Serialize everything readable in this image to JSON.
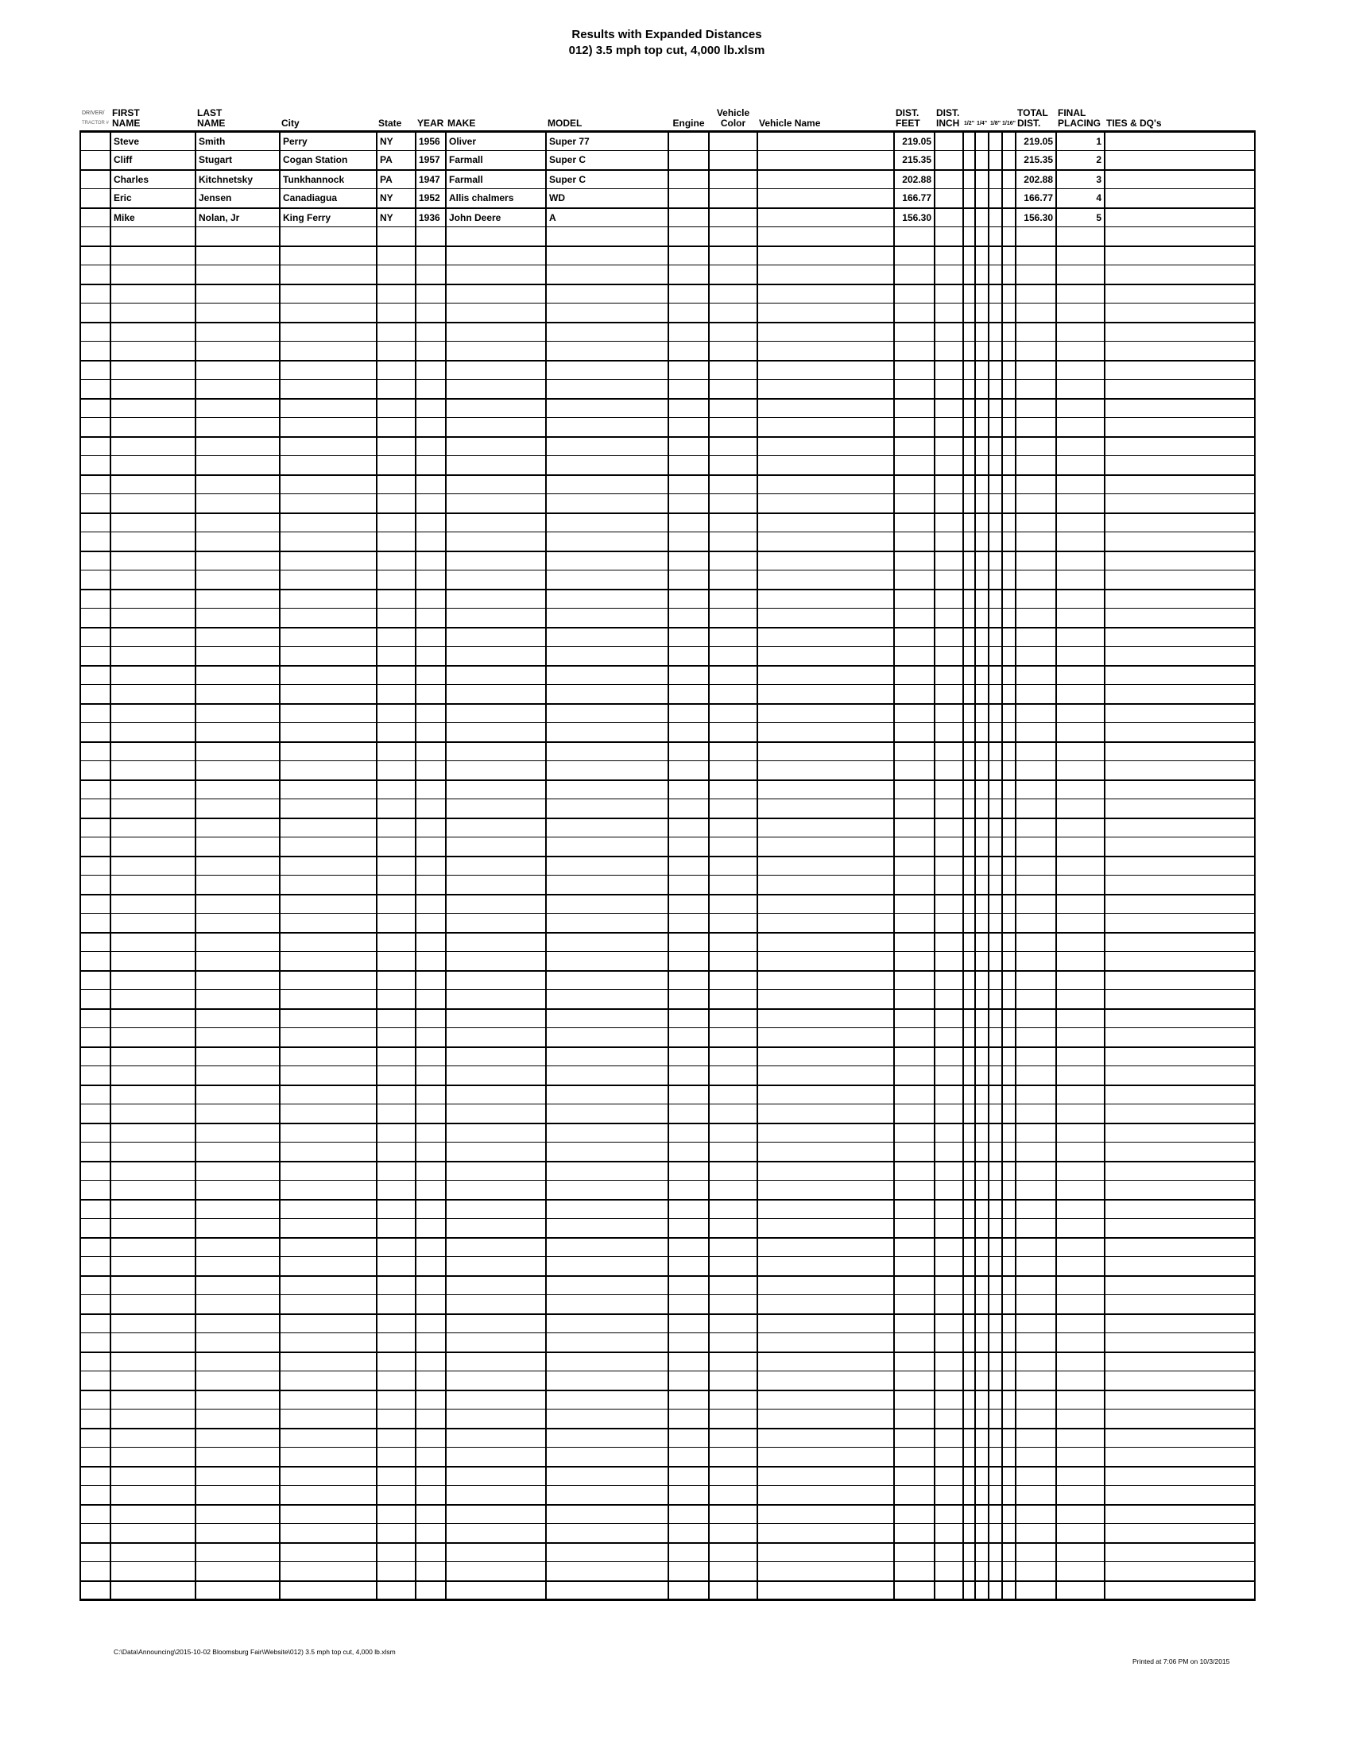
{
  "title": {
    "line1": "Results with Expanded Distances",
    "line2": "012) 3.5 mph top cut, 4,000 lb.xlsm"
  },
  "table": {
    "columns": [
      {
        "key": "driver",
        "lines": [
          "DRIVER/",
          "TRACTOR #"
        ]
      },
      {
        "key": "first",
        "lines": [
          "FIRST",
          "NAME"
        ]
      },
      {
        "key": "last",
        "lines": [
          "LAST",
          "NAME"
        ]
      },
      {
        "key": "city",
        "lines": [
          "City"
        ]
      },
      {
        "key": "state",
        "lines": [
          "State"
        ]
      },
      {
        "key": "year",
        "lines": [
          "YEAR"
        ]
      },
      {
        "key": "make",
        "lines": [
          "MAKE"
        ]
      },
      {
        "key": "model",
        "lines": [
          "MODEL"
        ]
      },
      {
        "key": "engine",
        "lines": [
          "Engine"
        ]
      },
      {
        "key": "color",
        "lines": [
          "Vehicle",
          "Color"
        ]
      },
      {
        "key": "vname",
        "lines": [
          "Vehicle Name"
        ]
      },
      {
        "key": "feet",
        "lines": [
          "DIST.",
          "FEET"
        ]
      },
      {
        "key": "inch",
        "lines": [
          "DIST.",
          "INCH"
        ]
      },
      {
        "key": "f2",
        "lines": [
          "1/2\""
        ]
      },
      {
        "key": "f4",
        "lines": [
          "1/4\""
        ]
      },
      {
        "key": "f8",
        "lines": [
          "1/8\""
        ]
      },
      {
        "key": "f16",
        "lines": [
          "1/16\""
        ]
      },
      {
        "key": "total",
        "lines": [
          "TOTAL",
          "DIST."
        ]
      },
      {
        "key": "placing",
        "lines": [
          "FINAL",
          "PLACING"
        ]
      },
      {
        "key": "ties",
        "lines": [
          "TIES & DQ's"
        ]
      }
    ],
    "rows": [
      {
        "driver": "",
        "first": "Steve",
        "last": "Smith",
        "city": "Perry",
        "state": "NY",
        "year": "1956",
        "make": "Oliver",
        "model": "Super 77",
        "engine": "",
        "color": "",
        "vname": "",
        "feet": "219.05",
        "inch": "",
        "f2": "",
        "f4": "",
        "f8": "",
        "f16": "",
        "total": "219.05",
        "placing": "1",
        "ties": ""
      },
      {
        "driver": "",
        "first": "Cliff",
        "last": "Stugart",
        "city": "Cogan Station",
        "state": "PA",
        "year": "1957",
        "make": "Farmall",
        "model": "Super C",
        "engine": "",
        "color": "",
        "vname": "",
        "feet": "215.35",
        "inch": "",
        "f2": "",
        "f4": "",
        "f8": "",
        "f16": "",
        "total": "215.35",
        "placing": "2",
        "ties": ""
      },
      {
        "driver": "",
        "first": "Charles",
        "last": "Kitchnetsky",
        "city": "Tunkhannock",
        "state": "PA",
        "year": "1947",
        "make": "Farmall",
        "model": "Super C",
        "engine": "",
        "color": "",
        "vname": "",
        "feet": "202.88",
        "inch": "",
        "f2": "",
        "f4": "",
        "f8": "",
        "f16": "",
        "total": "202.88",
        "placing": "3",
        "ties": ""
      },
      {
        "driver": "",
        "first": "Eric",
        "last": "Jensen",
        "city": "Canadiagua",
        "state": "NY",
        "year": "1952",
        "make": "Allis chalmers",
        "model": "WD",
        "engine": "",
        "color": "",
        "vname": "",
        "feet": "166.77",
        "inch": "",
        "f2": "",
        "f4": "",
        "f8": "",
        "f16": "",
        "total": "166.77",
        "placing": "4",
        "ties": ""
      },
      {
        "driver": "",
        "first": "Mike",
        "last": "Nolan, Jr",
        "city": "King Ferry",
        "state": "NY",
        "year": "1936",
        "make": "John Deere",
        "model": "A",
        "engine": "",
        "color": "",
        "vname": "",
        "feet": "156.30",
        "inch": "",
        "f2": "",
        "f4": "",
        "f8": "",
        "f16": "",
        "total": "156.30",
        "placing": "5",
        "ties": ""
      }
    ],
    "empty_row_count": 72
  },
  "footer": {
    "left": "C:\\Data\\Announcing\\2015-10-02 Bloomsburg Fair\\Website\\012) 3.5 mph top cut, 4,000 lb.xlsm",
    "right": "Printed at 7:06 PM on 10/3/2015"
  }
}
